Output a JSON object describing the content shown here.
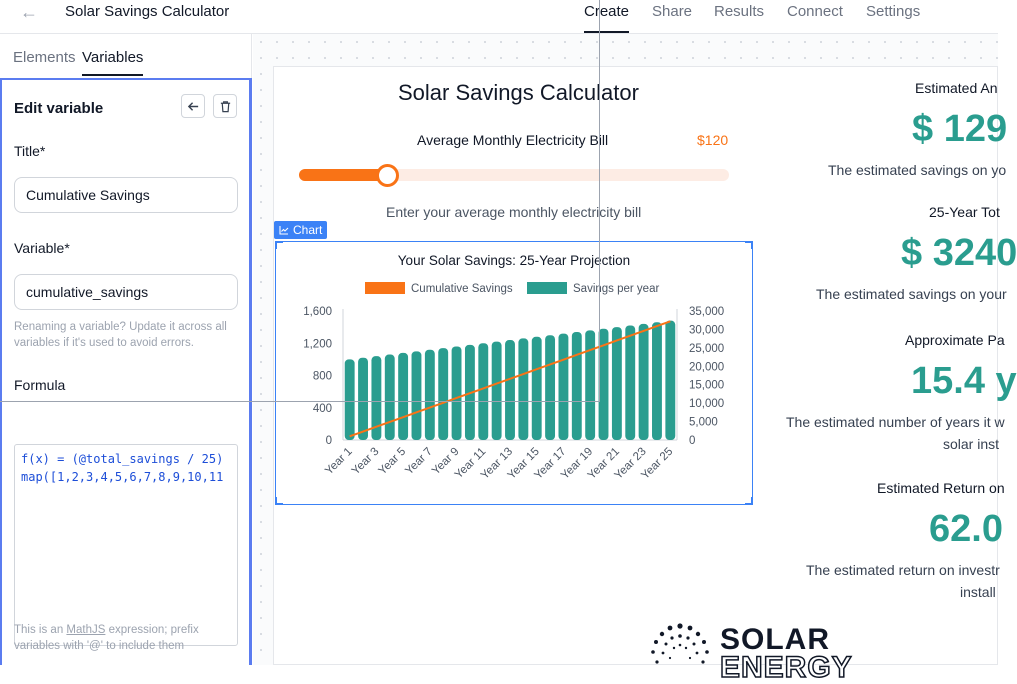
{
  "header": {
    "back_icon": "arrow-left-icon",
    "title": "Solar Savings Calculator",
    "tabs": [
      "Create",
      "Share",
      "Results",
      "Connect",
      "Settings"
    ],
    "active_tab": "Create"
  },
  "sidebar": {
    "tabs": [
      "Elements",
      "Variables"
    ],
    "active_tab": "Variables",
    "panel_title": "Edit variable",
    "title_label": "Title*",
    "title_value": "Cumulative Savings",
    "variable_label": "Variable*",
    "variable_value": "cumulative_savings",
    "rename_hint": "Renaming a variable? Update it across all variables if it's used to avoid errors.",
    "formula_label": "Formula",
    "formula_lines": [
      "f(x) = (@total_savings / 25)",
      "map([1,2,3,4,5,6,7,8,9,10,11"
    ],
    "formula_hint_pre": "This is an ",
    "formula_hint_link": "MathJS",
    "formula_hint_post": " expression; prefix variables with '@' to include them"
  },
  "calculator": {
    "title": "Solar Savings Calculator",
    "slider_label": "Average Monthly Electricity Bill",
    "slider_value_text": "$120",
    "slider_fraction": 0.205,
    "slider_help": "Enter your average monthly electricity bill",
    "chart_tag": "Chart"
  },
  "results": [
    {
      "head": "Estimated An",
      "value": "$ 129",
      "text": "The estimated savings on yo"
    },
    {
      "head": "25-Year Tot",
      "value": "$ 3240",
      "text": "The estimated savings on your"
    },
    {
      "head": "Approximate Pa",
      "value": "15.4 y",
      "text1": "The estimated number of years it w",
      "text2": "solar inst"
    },
    {
      "head": "Estimated Return on",
      "value": "62.0",
      "text1": "The estimated return on investr",
      "text2": "install"
    }
  ],
  "logo": {
    "line1": "SOLAR",
    "line2": "ENERGY"
  },
  "colors": {
    "accent": "#f97316",
    "teal": "#2a9d8f",
    "selection": "#3b82f6"
  },
  "chart_data": {
    "type": "bar",
    "title": "Your Solar Savings: 25-Year Projection",
    "categories": [
      "Year 1",
      "Year 2",
      "Year 3",
      "Year 4",
      "Year 5",
      "Year 6",
      "Year 7",
      "Year 8",
      "Year 9",
      "Year 10",
      "Year 11",
      "Year 12",
      "Year 13",
      "Year 14",
      "Year 15",
      "Year 16",
      "Year 17",
      "Year 18",
      "Year 19",
      "Year 20",
      "Year 21",
      "Year 22",
      "Year 23",
      "Year 24",
      "Year 25"
    ],
    "tick_labels": [
      "Year 1",
      "Year 3",
      "Year 5",
      "Year 7",
      "Year 9",
      "Year 11",
      "Year 13",
      "Year 15",
      "Year 17",
      "Year 19",
      "Year 21",
      "Year 23",
      "Year 25"
    ],
    "legend": [
      "Cumulative Savings",
      "Savings per year"
    ],
    "legend_position": "top",
    "series": [
      {
        "name": "Savings per year",
        "type": "bar",
        "axis": "left",
        "color": "#2a9d8f",
        "values": [
          1000,
          1020,
          1040,
          1060,
          1080,
          1100,
          1120,
          1140,
          1160,
          1180,
          1200,
          1220,
          1240,
          1260,
          1280,
          1300,
          1320,
          1340,
          1360,
          1380,
          1400,
          1420,
          1440,
          1460,
          1480
        ]
      },
      {
        "name": "Cumulative Savings",
        "type": "line",
        "axis": "right",
        "color": "#f97316",
        "values": [
          1000,
          2300,
          3600,
          4900,
          6200,
          7500,
          8800,
          10100,
          11400,
          12700,
          14000,
          15300,
          16600,
          17900,
          19200,
          20500,
          21800,
          23100,
          24400,
          25700,
          27000,
          28300,
          29600,
          30900,
          32200
        ]
      }
    ],
    "y_left_ticks": [
      "0",
      "400",
      "800",
      "1,200",
      "1,600"
    ],
    "y_left_range": [
      0,
      1600
    ],
    "y_right_ticks": [
      "0",
      "5,000",
      "10,000",
      "15,000",
      "20,000",
      "25,000",
      "30,000",
      "35,000"
    ],
    "y_right_range": [
      0,
      35000
    ],
    "grid": false
  }
}
